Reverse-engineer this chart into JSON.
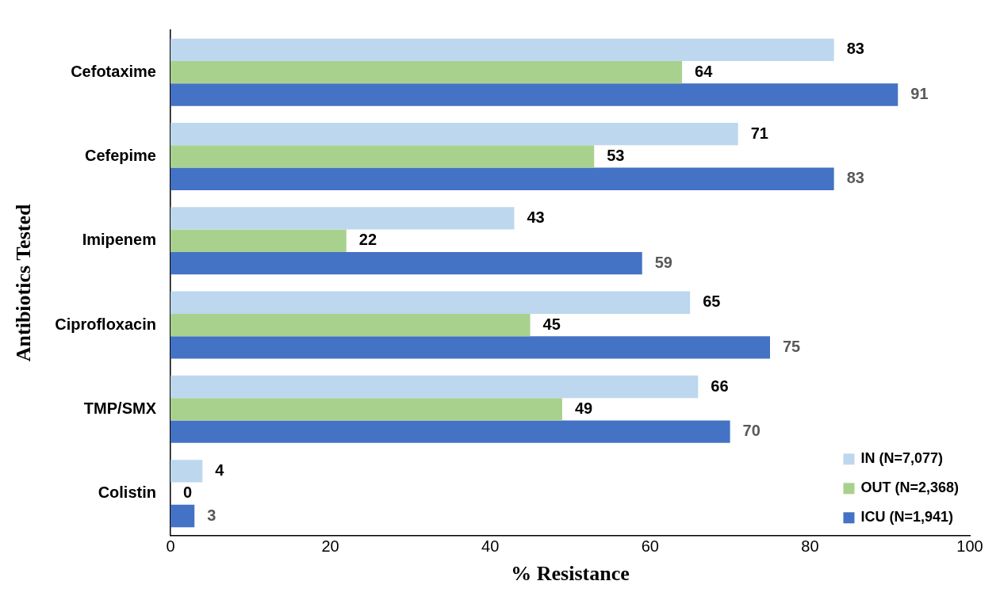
{
  "chart_data": {
    "type": "bar",
    "orientation": "horizontal",
    "xlabel": "% Resistance",
    "ylabel": "Antibiotics Tested",
    "categories": [
      "Cefotaxime",
      "Cefepime",
      "Imipenem",
      "Ciprofloxacin",
      "TMP/SMX",
      "Colistin"
    ],
    "series": [
      {
        "name": "IN (N=7,077)",
        "color": "#bdd7ee",
        "values": [
          83,
          71,
          43,
          65,
          66,
          4
        ]
      },
      {
        "name": "OUT (N=2,368)",
        "color": "#a9d18e",
        "values": [
          64,
          53,
          22,
          45,
          49,
          0
        ]
      },
      {
        "name": "ICU (N=1,941)",
        "color": "#4472c4",
        "values": [
          91,
          83,
          59,
          75,
          70,
          3
        ]
      }
    ],
    "xlim": [
      0,
      100
    ],
    "xticks": [
      0,
      20,
      40,
      60,
      80,
      100
    ],
    "grid": false,
    "legend": "bottom right",
    "data_labels": true
  }
}
